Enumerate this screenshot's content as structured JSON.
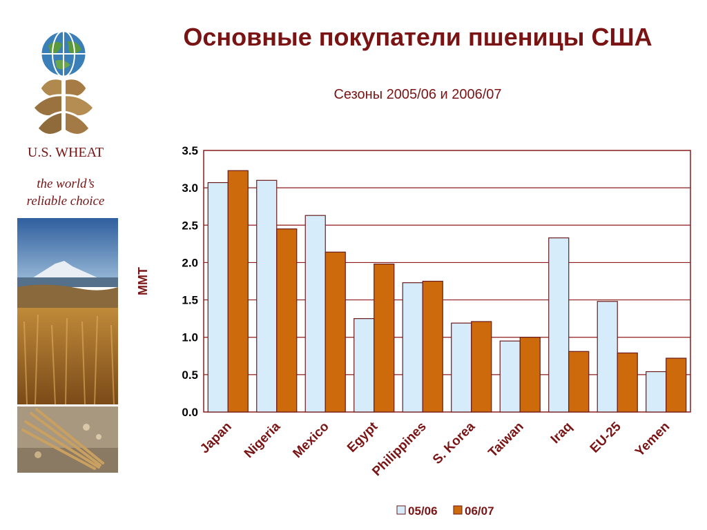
{
  "branding": {
    "name": "U.S. WHEAT",
    "tagline_line1": "the world’s",
    "tagline_line2": "reliable choice"
  },
  "colors": {
    "title": "#7a1414",
    "grid": "#8b1a1a",
    "series_0506": "#d6ecfa",
    "series_0607": "#cc6a0c"
  },
  "chart_data": {
    "type": "bar",
    "title": "Основные покупатели пшеницы США",
    "subtitle": "Сезоны 2005/06 и 2006/07",
    "xlabel": "",
    "ylabel": "MMT",
    "ylim": [
      0,
      3.5
    ],
    "yticks": [
      "0.0",
      "0.5",
      "1.0",
      "1.5",
      "2.0",
      "2.5",
      "3.0",
      "3.5"
    ],
    "categories": [
      "Japan",
      "Nigeria",
      "Mexico",
      "Egypt",
      "Philippines",
      "S. Korea",
      "Taiwan",
      "Iraq",
      "EU-25",
      "Yemen"
    ],
    "series": [
      {
        "name": "05/06",
        "values": [
          3.07,
          3.1,
          2.63,
          1.25,
          1.73,
          1.19,
          0.95,
          2.33,
          1.48,
          0.54
        ]
      },
      {
        "name": "06/07",
        "values": [
          3.23,
          2.45,
          2.14,
          1.98,
          1.75,
          1.21,
          1.0,
          0.81,
          0.79,
          0.72
        ]
      }
    ],
    "grid": true,
    "legend_position": "bottom"
  }
}
